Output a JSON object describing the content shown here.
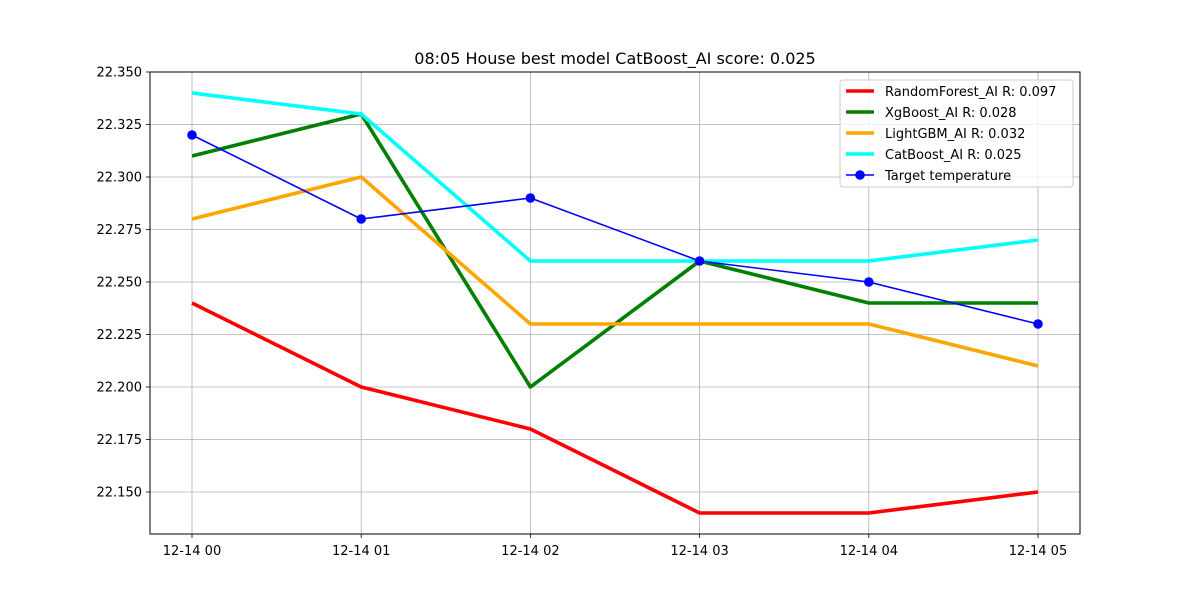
{
  "chart_data": {
    "type": "line",
    "title": "08:05 House best model CatBoost_AI score: 0.025",
    "xlabel": "",
    "ylabel": "",
    "categories": [
      "12-14 00",
      "12-14 01",
      "12-14 02",
      "12-14 03",
      "12-14 04",
      "12-14 05"
    ],
    "ylim": [
      22.13,
      22.35
    ],
    "yticks": [
      "22.150",
      "22.175",
      "22.200",
      "22.225",
      "22.250",
      "22.275",
      "22.300",
      "22.325",
      "22.350"
    ],
    "grid": true,
    "legend_position": "top-right",
    "series": [
      {
        "name": "RandomForest_AI R: 0.097",
        "color": "#ff0000",
        "style": "thick-line",
        "values": [
          22.24,
          22.2,
          22.18,
          22.14,
          22.14,
          22.15
        ]
      },
      {
        "name": "XgBoost_AI R: 0.028",
        "color": "#008000",
        "style": "thick-line",
        "values": [
          22.31,
          22.33,
          22.2,
          22.26,
          22.24,
          22.24
        ]
      },
      {
        "name": "LightGBM_AI R: 0.032",
        "color": "#ffa500",
        "style": "thick-line",
        "values": [
          22.28,
          22.3,
          22.23,
          22.23,
          22.23,
          22.21
        ]
      },
      {
        "name": "CatBoost_AI R: 0.025",
        "color": "#00ffff",
        "style": "thick-line",
        "values": [
          22.34,
          22.33,
          22.26,
          22.26,
          22.26,
          22.27
        ]
      },
      {
        "name": "Target temperature",
        "color": "#0000ff",
        "style": "line-marker",
        "values": [
          22.32,
          22.28,
          22.29,
          22.26,
          22.25,
          22.23
        ]
      }
    ]
  }
}
